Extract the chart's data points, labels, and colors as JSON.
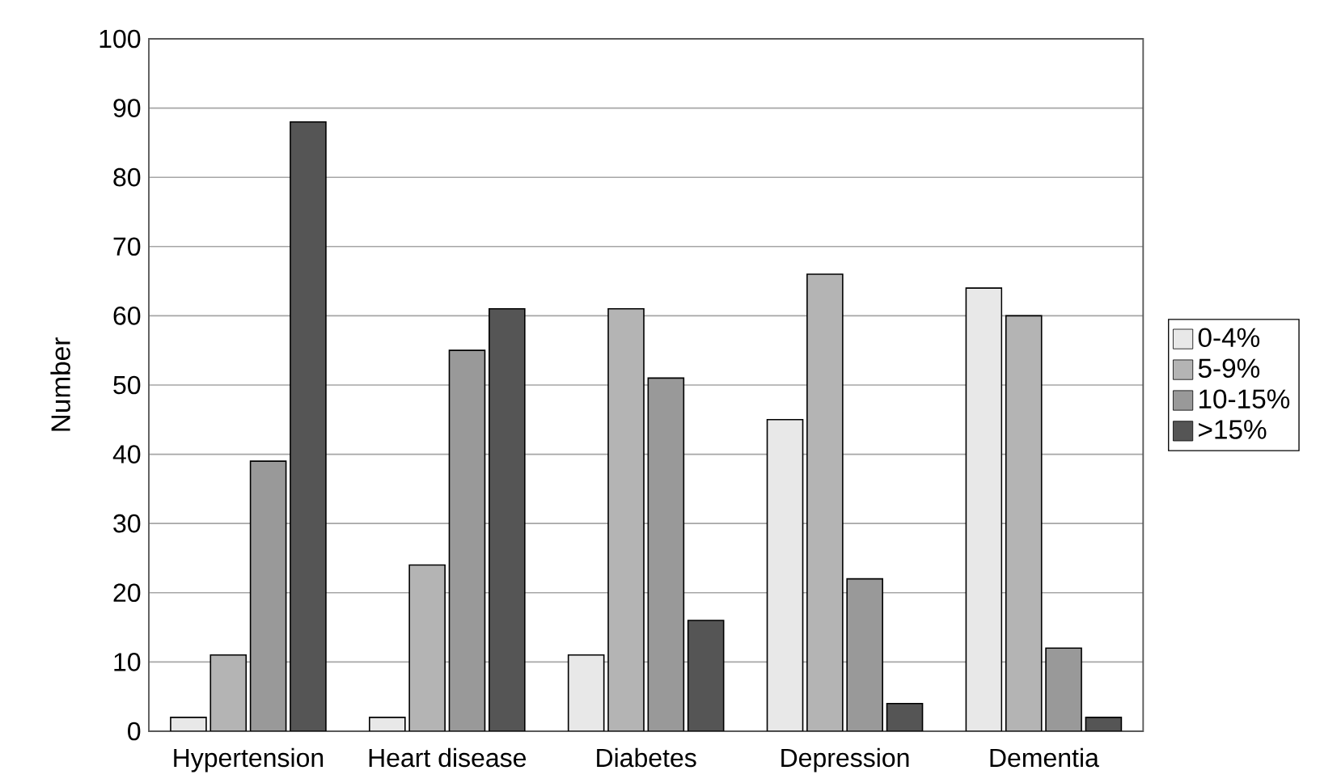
{
  "chart_data": {
    "type": "bar",
    "ylabel": "Number",
    "categories": [
      "Hypertension",
      "Heart disease",
      "Diabetes",
      "Depression",
      "Dementia"
    ],
    "series": [
      {
        "name": "0-4%",
        "color": "#e8e8e8",
        "values": [
          2,
          2,
          11,
          45,
          64
        ]
      },
      {
        "name": "5-9%",
        "color": "#b4b4b4",
        "values": [
          11,
          24,
          61,
          66,
          60
        ]
      },
      {
        "name": "10-15%",
        "color": "#999999",
        "values": [
          39,
          55,
          51,
          22,
          12
        ]
      },
      {
        "name": ">15%",
        "color": "#555555",
        "values": [
          88,
          61,
          16,
          4,
          2
        ]
      }
    ],
    "ylim": [
      0,
      100
    ],
    "yticks": [
      0,
      10,
      20,
      30,
      40,
      50,
      60,
      70,
      80,
      90,
      100
    ],
    "grid": "y",
    "legend": "right"
  }
}
